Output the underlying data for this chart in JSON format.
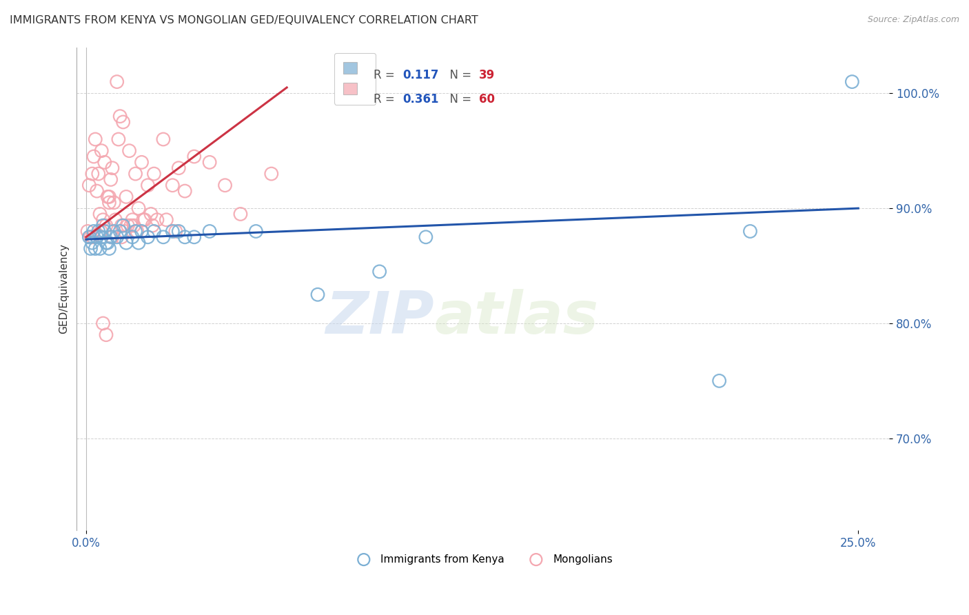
{
  "title": "IMMIGRANTS FROM KENYA VS MONGOLIAN GED/EQUIVALENCY CORRELATION CHART",
  "source": "Source: ZipAtlas.com",
  "xlabel_vals": [
    0,
    25
  ],
  "xlabel_labels": [
    "0.0%",
    "25.0%"
  ],
  "ylabel_vals": [
    70,
    80,
    90,
    100
  ],
  "ylabel_labels": [
    "70.0%",
    "80.0%",
    "90.0%",
    "100.0%"
  ],
  "xlim": [
    -0.3,
    26
  ],
  "ylim": [
    62,
    104
  ],
  "legend_blue_R": "0.117",
  "legend_blue_N": "39",
  "legend_pink_R": "0.361",
  "legend_pink_N": "60",
  "watermark_zip": "ZIP",
  "watermark_atlas": "atlas",
  "ylabel": "GED/Equivalency",
  "legend_label_blue": "Immigrants from Kenya",
  "legend_label_pink": "Mongolians",
  "blue_color": "#7BAFD4",
  "pink_color": "#F4A7B0",
  "blue_line_color": "#2255AA",
  "pink_line_color": "#CC3344",
  "grid_color": "#CCCCCC",
  "blue_scatter_x": [
    0.1,
    0.15,
    0.2,
    0.25,
    0.3,
    0.35,
    0.4,
    0.5,
    0.55,
    0.6,
    0.7,
    0.75,
    0.8,
    0.9,
    1.0,
    1.1,
    1.2,
    1.3,
    1.5,
    1.6,
    1.7,
    1.8,
    2.0,
    2.2,
    2.5,
    2.8,
    3.0,
    3.2,
    3.5,
    4.0,
    5.5,
    7.5,
    9.5,
    11.0,
    20.5,
    21.5,
    24.8,
    0.45,
    0.65
  ],
  "blue_scatter_y": [
    87.5,
    86.5,
    87.0,
    88.0,
    86.5,
    87.5,
    88.0,
    87.5,
    88.5,
    88.0,
    87.0,
    86.5,
    87.5,
    88.0,
    87.5,
    88.0,
    88.5,
    87.0,
    87.5,
    88.0,
    87.0,
    88.0,
    87.5,
    88.0,
    87.5,
    88.0,
    88.0,
    87.5,
    87.5,
    88.0,
    88.0,
    82.5,
    84.5,
    87.5,
    75.0,
    88.0,
    101.0,
    86.5,
    87.0
  ],
  "pink_scatter_x": [
    0.05,
    0.1,
    0.15,
    0.2,
    0.25,
    0.3,
    0.35,
    0.4,
    0.45,
    0.5,
    0.55,
    0.6,
    0.65,
    0.7,
    0.75,
    0.8,
    0.85,
    0.9,
    0.95,
    1.0,
    1.05,
    1.1,
    1.15,
    1.2,
    1.25,
    1.3,
    1.4,
    1.5,
    1.6,
    1.7,
    1.8,
    1.9,
    2.0,
    2.1,
    2.2,
    2.3,
    2.5,
    2.8,
    3.0,
    3.2,
    3.5,
    4.0,
    4.5,
    5.0,
    6.0,
    1.35,
    0.55,
    0.65,
    0.75,
    0.85,
    2.6,
    1.15,
    1.55,
    1.65,
    2.15,
    1.85,
    2.9,
    0.22,
    0.48,
    1.45
  ],
  "pink_scatter_y": [
    88.0,
    92.0,
    87.5,
    93.0,
    94.5,
    96.0,
    91.5,
    93.0,
    89.5,
    95.0,
    89.0,
    94.0,
    88.5,
    91.0,
    90.5,
    92.5,
    93.5,
    90.5,
    89.0,
    101.0,
    96.0,
    98.0,
    88.5,
    97.5,
    88.0,
    91.0,
    95.0,
    89.0,
    93.0,
    90.0,
    94.0,
    89.0,
    92.0,
    89.5,
    93.0,
    89.0,
    96.0,
    92.0,
    93.5,
    91.5,
    94.5,
    94.0,
    92.0,
    89.5,
    93.0,
    88.5,
    80.0,
    79.0,
    91.0,
    87.5,
    89.0,
    87.5,
    88.5,
    88.0,
    88.5,
    89.0,
    88.0,
    87.5,
    88.0,
    88.5
  ],
  "blue_trend_x": [
    0,
    25
  ],
  "blue_trend_y": [
    87.3,
    90.0
  ],
  "pink_trend_x": [
    0,
    6.5
  ],
  "pink_trend_y": [
    87.5,
    100.5
  ]
}
